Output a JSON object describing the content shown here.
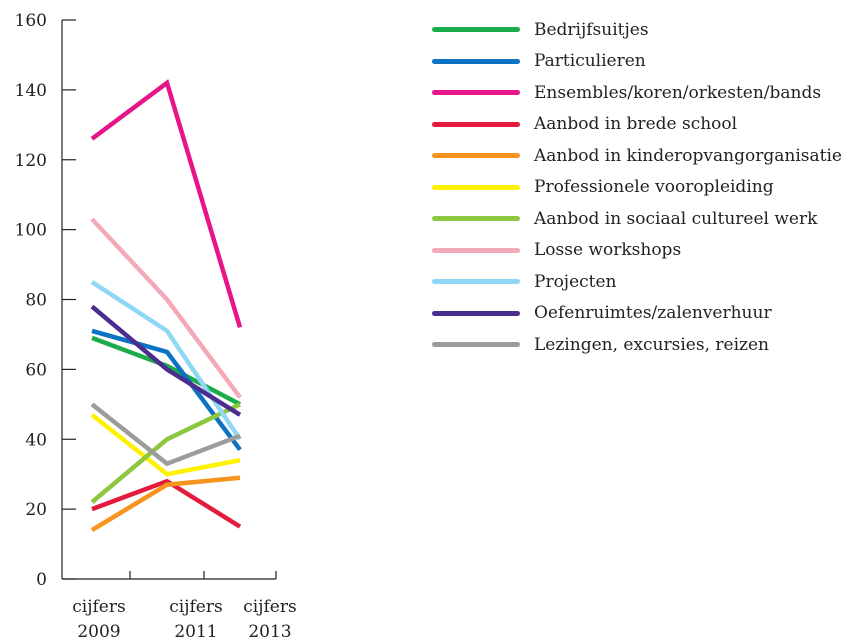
{
  "chart_data": {
    "type": "line",
    "title": "",
    "xlabel": "",
    "ylabel": "",
    "categories": [
      [
        "cijfers",
        "2009"
      ],
      [
        "cijfers",
        "2011"
      ],
      [
        "cijfers",
        "2013"
      ]
    ],
    "ylim": [
      0,
      160
    ],
    "yticks": [
      0,
      20,
      40,
      60,
      80,
      100,
      120,
      140,
      160
    ],
    "grid": false,
    "legend_position": "right",
    "series": [
      {
        "name": "Bedrijfsuitjes",
        "color": "#1aab4b",
        "values": [
          69,
          61,
          50
        ]
      },
      {
        "name": "Particulieren",
        "color": "#0b72c4",
        "values": [
          71,
          65,
          37
        ]
      },
      {
        "name": "Ensembles/koren/orkesten/bands",
        "color": "#e6168a",
        "values": [
          126,
          142,
          72
        ]
      },
      {
        "name": "Aanbod in brede school",
        "color": "#e31b3c",
        "values": [
          20,
          28,
          15
        ]
      },
      {
        "name": "Aanbod in kinderopvangorganisatie",
        "color": "#f7941d",
        "values": [
          14,
          27,
          29
        ]
      },
      {
        "name": "Professionele vooropleiding",
        "color": "#fff200",
        "values": [
          47,
          30,
          34
        ]
      },
      {
        "name": "Aanbod in sociaal cultureel werk",
        "color": "#8dc63f",
        "values": [
          22,
          40,
          50
        ]
      },
      {
        "name": "Losse workshops",
        "color": "#f4a9b8",
        "values": [
          103,
          80,
          52
        ]
      },
      {
        "name": "Projecten",
        "color": "#8fd7f5",
        "values": [
          85,
          71,
          40
        ]
      },
      {
        "name": "Oefenruimtes/zalenverhuur",
        "color": "#4b2c8f",
        "values": [
          78,
          60,
          47
        ]
      },
      {
        "name": "Lezingen, excursies, reizen",
        "color": "#9c9c9c",
        "values": [
          50,
          33,
          41
        ]
      }
    ]
  }
}
